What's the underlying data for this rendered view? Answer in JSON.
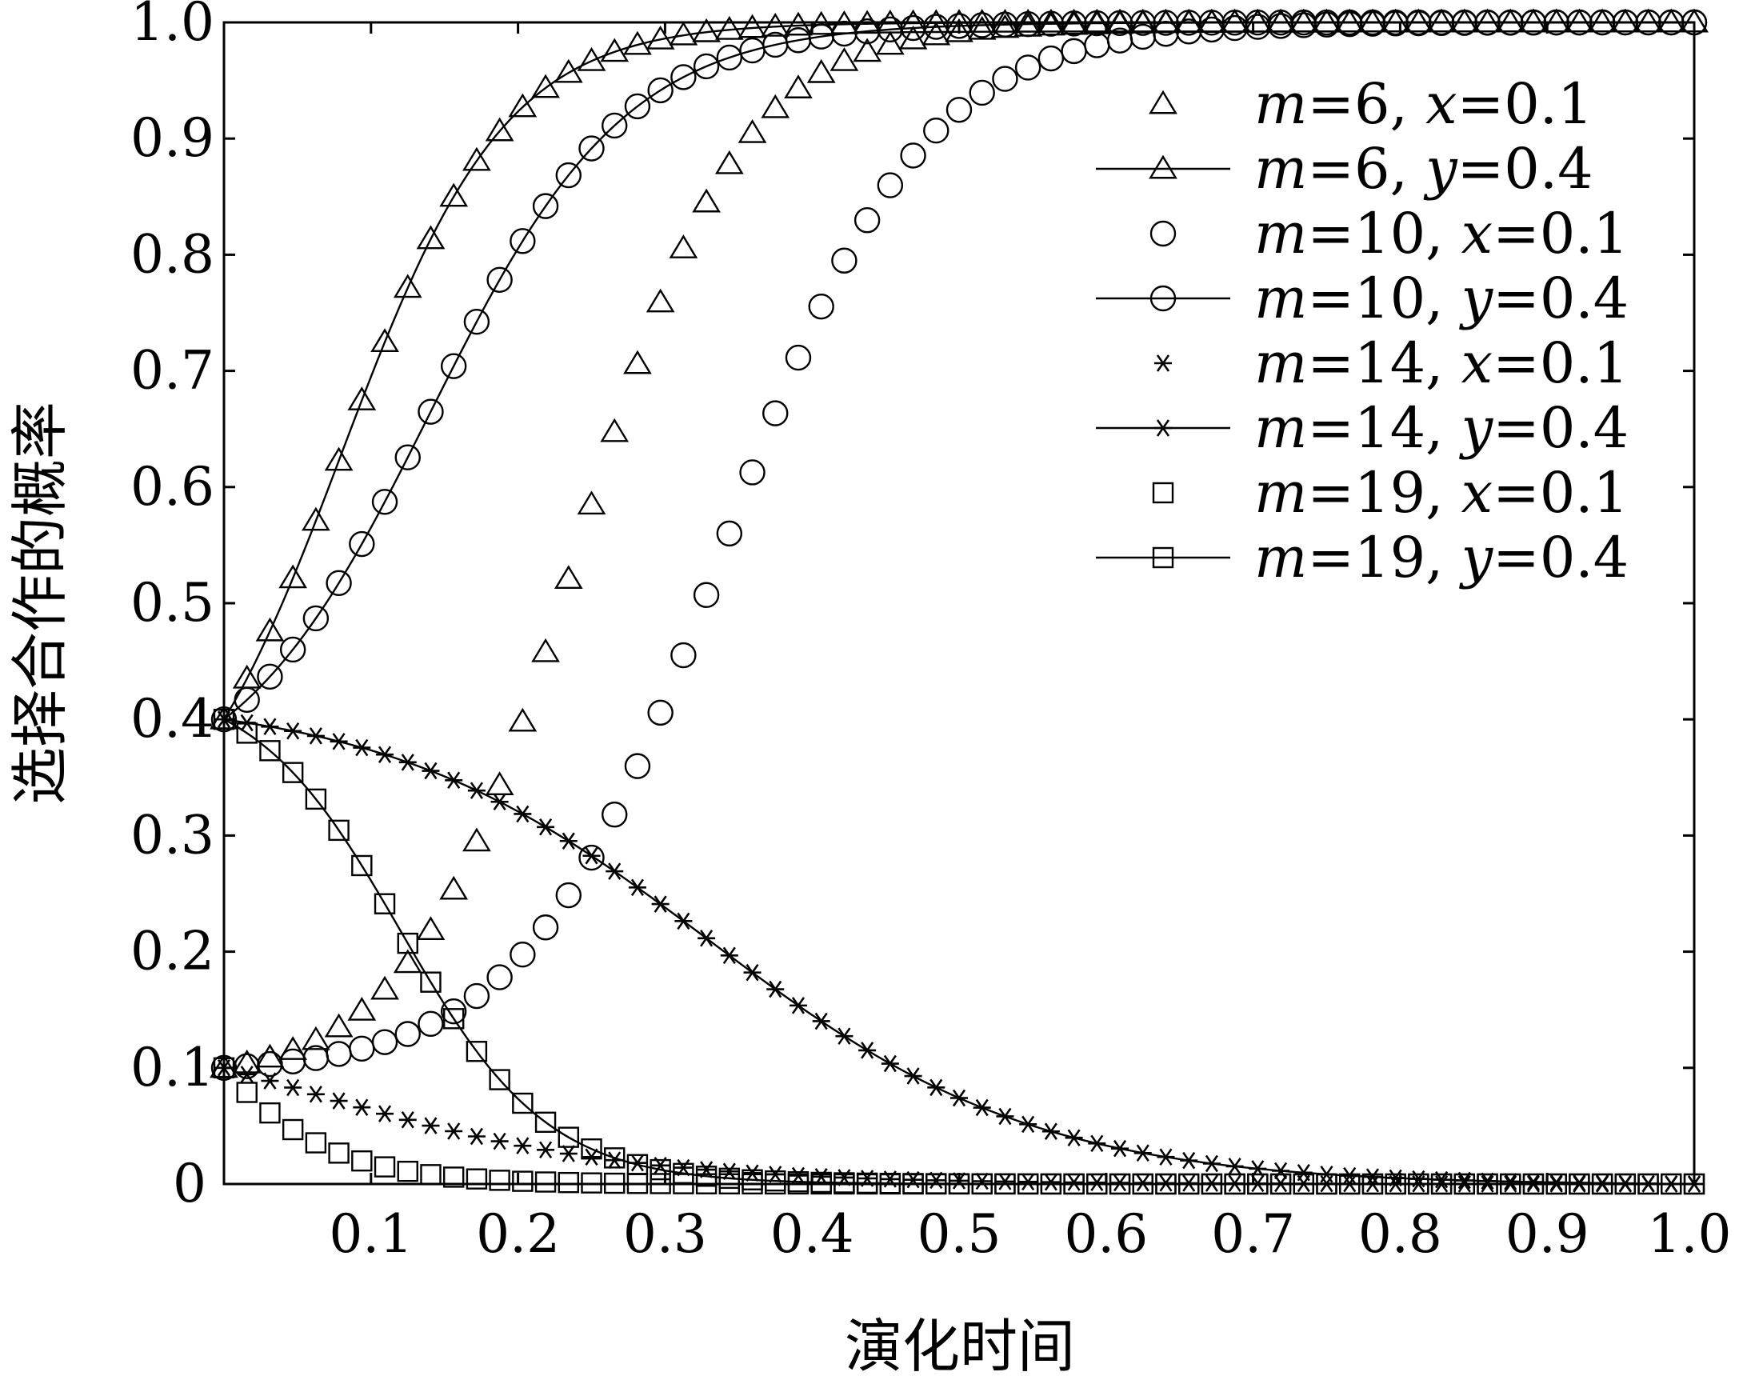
{
  "chart_data": {
    "type": "line",
    "title": "",
    "xlabel": "演化时间",
    "ylabel": "选择合作的概率",
    "xlim": [
      0,
      1
    ],
    "ylim": [
      0,
      1
    ],
    "x_ticks": [
      "0.1",
      "0.2",
      "0.3",
      "0.4",
      "0.5",
      "0.6",
      "0.7",
      "0.8",
      "0.9",
      "1.0"
    ],
    "y_ticks": [
      "0",
      "0.1",
      "0.2",
      "0.3",
      "0.4",
      "0.5",
      "0.6",
      "0.7",
      "0.8",
      "0.9",
      "1.0"
    ],
    "grid": false,
    "legend_position": "top-right",
    "series": [
      {
        "name": "m=6, x=0.1",
        "marker": "triangle",
        "line": false,
        "start": 0.1,
        "target": 1,
        "rate": 18,
        "mid": 0.24
      },
      {
        "name": "m=6, y=0.4",
        "marker": "triangle",
        "line": true,
        "start": 0.4,
        "target": 1,
        "rate": 18,
        "mid": 0.08
      },
      {
        "name": "m=10, x=0.1",
        "marker": "circle",
        "line": false,
        "start": 0.1,
        "target": 1,
        "rate": 15,
        "mid": 0.34
      },
      {
        "name": "m=10, y=0.4",
        "marker": "circle",
        "line": true,
        "start": 0.4,
        "target": 1,
        "rate": 15,
        "mid": 0.14
      },
      {
        "name": "m=14, x=0.1",
        "marker": "star",
        "line": false,
        "start": 0.1,
        "target": 0,
        "rate": 9,
        "mid": 0.05
      },
      {
        "name": "m=14, y=0.4",
        "marker": "star",
        "line": true,
        "start": 0.4,
        "target": 0,
        "rate": 9,
        "mid": 0.33
      },
      {
        "name": "m=19, x=0.1",
        "marker": "square",
        "line": false,
        "start": 0.1,
        "target": 0,
        "rate": 20,
        "mid": -0.05
      },
      {
        "name": "m=19, y=0.4",
        "marker": "square",
        "line": true,
        "start": 0.4,
        "target": 0,
        "rate": 20,
        "mid": 0.12
      }
    ],
    "legend": [
      {
        "var": "m",
        "eq1": "=6, ",
        "var2": "x",
        "eq2": "=0.1"
      },
      {
        "var": "m",
        "eq1": "=6, ",
        "var2": "y",
        "eq2": "=0.4"
      },
      {
        "var": "m",
        "eq1": "=10, ",
        "var2": "x",
        "eq2": "=0.1"
      },
      {
        "var": "m",
        "eq1": "=10, ",
        "var2": "y",
        "eq2": "=0.4"
      },
      {
        "var": "m",
        "eq1": "=14, ",
        "var2": "x",
        "eq2": "=0.1"
      },
      {
        "var": "m",
        "eq1": "=14, ",
        "var2": "y",
        "eq2": "=0.4"
      },
      {
        "var": "m",
        "eq1": "=19, ",
        "var2": "x",
        "eq2": "=0.1"
      },
      {
        "var": "m",
        "eq1": "=19, ",
        "var2": "y",
        "eq2": "=0.4"
      }
    ]
  }
}
